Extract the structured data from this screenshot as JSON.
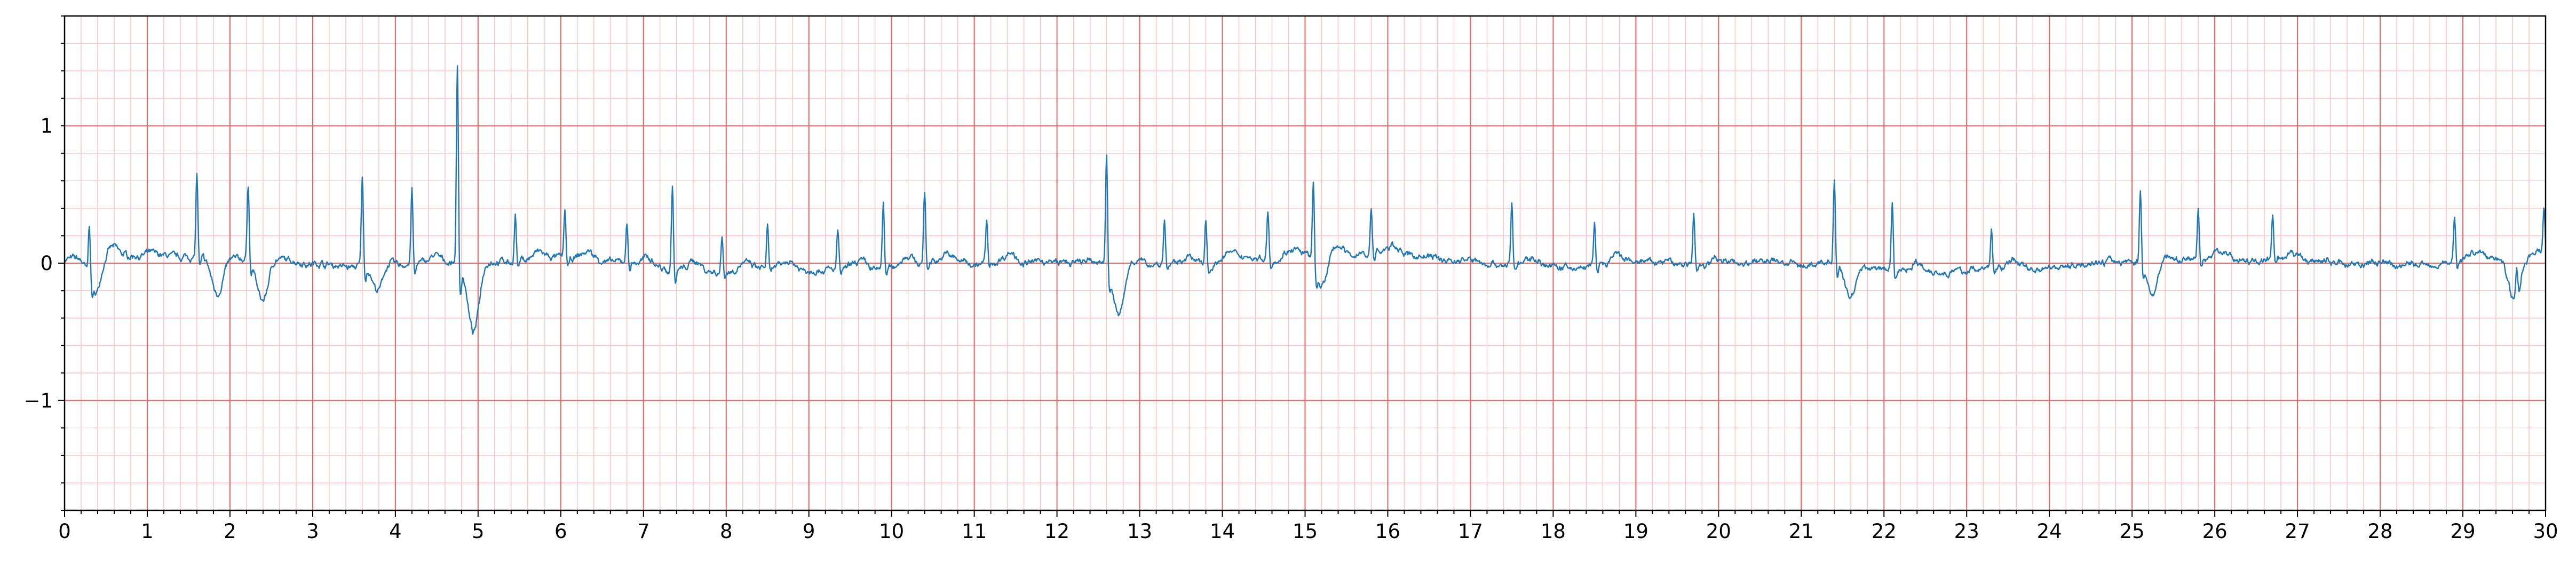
{
  "chart_data": {
    "type": "line",
    "title": "",
    "xlabel": "",
    "ylabel": "",
    "xlim": [
      0,
      30
    ],
    "ylim": [
      -1.8,
      1.8
    ],
    "x_ticks": [
      "0",
      "1",
      "2",
      "3",
      "4",
      "5",
      "6",
      "7",
      "8",
      "9",
      "10",
      "11",
      "12",
      "13",
      "14",
      "15",
      "16",
      "17",
      "18",
      "19",
      "20",
      "21",
      "22",
      "23",
      "24",
      "25",
      "26",
      "27",
      "28",
      "29",
      "30"
    ],
    "y_ticks": [
      {
        "value": 1,
        "label": "1"
      },
      {
        "value": 0,
        "label": "0"
      },
      {
        "value": -1,
        "label": "−1"
      }
    ],
    "grid": true,
    "grid_major_x": 1,
    "grid_minor_x": 0.2,
    "grid_major_y": 1,
    "grid_minor_y": 0.2,
    "colors": {
      "trace": "#1f77b4",
      "grid_major": "#f06060",
      "grid_minor": "#f9c4c4",
      "axes": "#000000"
    },
    "series": [
      {
        "name": "",
        "peaks": [
          [
            0.3,
            0.4
          ],
          [
            1.6,
            0.62
          ],
          [
            2.22,
            0.56
          ],
          [
            3.6,
            0.66
          ],
          [
            4.2,
            0.56
          ],
          [
            4.75,
            1.44
          ],
          [
            5.45,
            0.35
          ],
          [
            6.05,
            0.36
          ],
          [
            6.8,
            0.28
          ],
          [
            7.35,
            0.63
          ],
          [
            7.95,
            0.25
          ],
          [
            8.5,
            0.3
          ],
          [
            9.35,
            0.28
          ],
          [
            9.9,
            0.47
          ],
          [
            10.4,
            0.5
          ],
          [
            11.15,
            0.3
          ],
          [
            12.6,
            0.83
          ],
          [
            13.3,
            0.32
          ],
          [
            13.8,
            0.35
          ],
          [
            14.55,
            0.35
          ],
          [
            15.1,
            0.62
          ],
          [
            15.8,
            0.34
          ],
          [
            17.5,
            0.44
          ],
          [
            18.5,
            0.34
          ],
          [
            19.7,
            0.36
          ],
          [
            21.4,
            0.63
          ],
          [
            22.1,
            0.48
          ],
          [
            23.3,
            0.3
          ],
          [
            25.1,
            0.55
          ],
          [
            25.8,
            0.38
          ],
          [
            26.7,
            0.31
          ],
          [
            28.9,
            0.32
          ],
          [
            29.65,
            0.22
          ],
          [
            29.98,
            0.32
          ]
        ],
        "dips": [
          [
            0.37,
            -0.25
          ],
          [
            1.85,
            -0.32
          ],
          [
            2.4,
            -0.32
          ],
          [
            3.8,
            -0.22
          ],
          [
            4.95,
            -0.55
          ],
          [
            12.75,
            -0.38
          ],
          [
            15.2,
            -0.24
          ],
          [
            21.6,
            -0.25
          ],
          [
            25.25,
            -0.25
          ],
          [
            29.62,
            -0.3
          ]
        ]
      }
    ]
  }
}
